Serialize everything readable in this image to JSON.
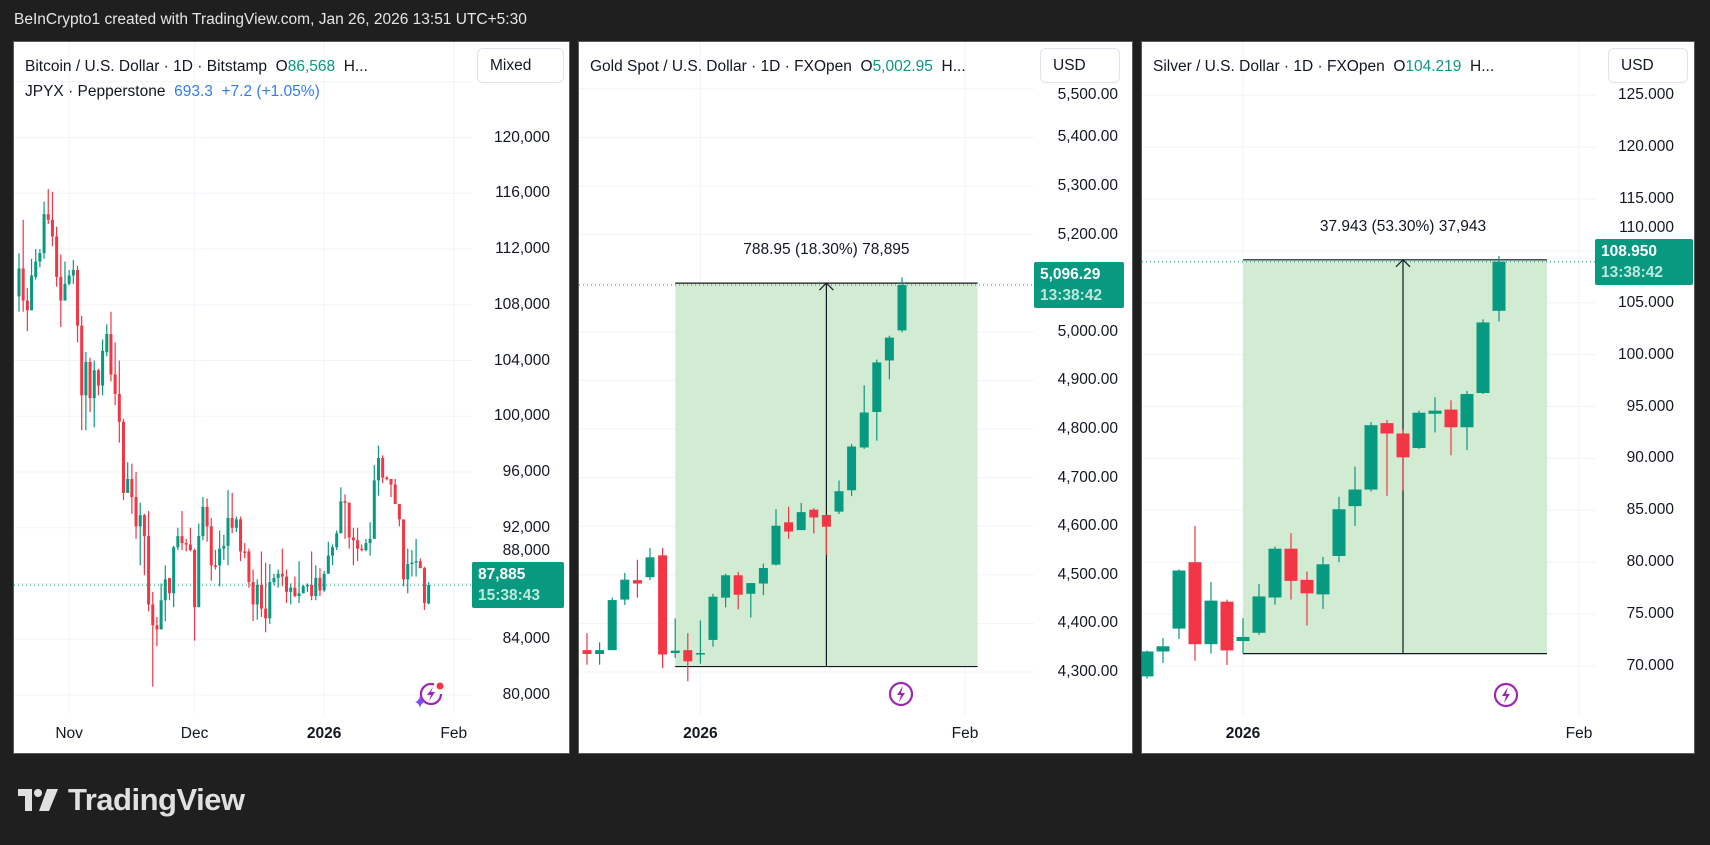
{
  "topbar": {
    "text": "BeInCrypto1 created with TradingView.com, Jan 26, 2026 13:51 UTC+5:30"
  },
  "logo": {
    "text": "TradingView"
  },
  "colors": {
    "up": "#089981",
    "down": "#f23645",
    "measure_fill": "#d2ebd3",
    "legend_blue": "#2f7cf6",
    "bolt": "#9c27b0"
  },
  "panels": [
    {
      "symbol": "Bitcoin / U.S. Dollar · 1D · Bitstamp",
      "open_prefix": "O",
      "open_value": "86,568",
      "more": "H...",
      "overlay": {
        "name": "JPYX · Pepperstone",
        "value": "693.3",
        "change": "+7.2 (+1.05%)"
      },
      "scale_button": "Mixed",
      "price_label": {
        "price": "87,885",
        "countdown": "15:38:43"
      }
    },
    {
      "symbol": "Gold Spot / U.S. Dollar · 1D · FXOpen",
      "open_prefix": "O",
      "open_value": "5,002.95",
      "more": "H...",
      "scale_button": "USD",
      "price_label": {
        "price": "5,096.29",
        "countdown": "13:38:42"
      },
      "measure_label": "788.95 (18.30%) 78,895"
    },
    {
      "symbol": "Silver / U.S. Dollar · 1D · FXOpen",
      "open_prefix": "O",
      "open_value": "104.219",
      "more": "H...",
      "scale_button": "USD",
      "price_label": {
        "price": "108.950",
        "countdown": "13:38:42"
      },
      "measure_label": "37.943 (53.30%) 37,943"
    }
  ],
  "chart_data": [
    {
      "type": "candlestick",
      "title": "Bitcoin / U.S. Dollar · 1D · Bitstamp",
      "last_price": 87885,
      "ylim": [
        79000,
        125000
      ],
      "grid": true,
      "y_ticks": [
        {
          "value": 80000,
          "label": "80,000"
        },
        {
          "value": 84000,
          "label": "84,000"
        },
        {
          "value": 88000,
          "label": "88,000"
        },
        {
          "value": 92000,
          "label": "92,000"
        },
        {
          "value": 96000,
          "label": "96,000"
        },
        {
          "value": 100000,
          "label": "100,000"
        },
        {
          "value": 104000,
          "label": "104,000"
        },
        {
          "value": 108000,
          "label": "108,000"
        },
        {
          "value": 112000,
          "label": "112,000"
        },
        {
          "value": 116000,
          "label": "116,000"
        },
        {
          "value": 120000,
          "label": "120,000"
        },
        {
          "value": 124000,
          "label": ""
        }
      ],
      "x_ticks": [
        {
          "label": "Nov",
          "candle_index": 12,
          "bold": false
        },
        {
          "label": "Dec",
          "candle_index": 42,
          "bold": false
        },
        {
          "label": "2026",
          "candle_index": 73,
          "bold": true
        },
        {
          "label": "Feb",
          "candle_index": 104,
          "bold": false
        }
      ],
      "ohlc": [
        [
          108600,
          111700,
          107500,
          110600
        ],
        [
          110600,
          114100,
          107500,
          108300
        ],
        [
          108300,
          109200,
          106100,
          107600
        ],
        [
          107600,
          111300,
          107600,
          110100
        ],
        [
          110000,
          112000,
          109800,
          111100
        ],
        [
          111100,
          112000,
          110700,
          111700
        ],
        [
          111700,
          115400,
          111300,
          114500
        ],
        [
          114500,
          116300,
          113800,
          114100
        ],
        [
          114100,
          116100,
          112200,
          112900
        ],
        [
          112900,
          113600,
          109300,
          110000
        ],
        [
          110000,
          111600,
          106400,
          108300
        ],
        [
          108300,
          111100,
          108300,
          109500
        ],
        [
          109500,
          110500,
          109400,
          110100
        ],
        [
          110100,
          111200,
          109500,
          110500
        ],
        [
          110500,
          110800,
          105300,
          106500
        ],
        [
          106500,
          107200,
          99000,
          101500
        ],
        [
          101500,
          104600,
          99000,
          103900
        ],
        [
          103900,
          104200,
          100300,
          101300
        ],
        [
          101300,
          104000,
          99200,
          103300
        ],
        [
          103300,
          103400,
          101500,
          102200
        ],
        [
          102200,
          105500,
          101500,
          104700
        ],
        [
          104600,
          106600,
          104300,
          105900
        ],
        [
          105900,
          107500,
          102500,
          103000
        ],
        [
          103000,
          105300,
          100800,
          101600
        ],
        [
          101600,
          104000,
          98100,
          99600
        ],
        [
          99600,
          99800,
          94000,
          94500
        ],
        [
          94500,
          96700,
          94500,
          95500
        ],
        [
          95500,
          96600,
          93000,
          94200
        ],
        [
          94200,
          96000,
          91200,
          92100
        ],
        [
          92100,
          93800,
          89300,
          92900
        ],
        [
          92900,
          93000,
          88600,
          91400
        ],
        [
          91400,
          93200,
          86000,
          86500
        ],
        [
          86500,
          87400,
          80600,
          85000
        ],
        [
          85000,
          85600,
          83500,
          84700
        ],
        [
          84700,
          88000,
          84700,
          86800
        ],
        [
          86800,
          89300,
          85300,
          88300
        ],
        [
          88400,
          88400,
          86800,
          87300
        ],
        [
          87300,
          90700,
          86300,
          90600
        ],
        [
          90600,
          92000,
          90400,
          91400
        ],
        [
          91400,
          93200,
          90400,
          90900
        ],
        [
          90900,
          91200,
          90300,
          90800
        ],
        [
          90800,
          92000,
          90300,
          90400
        ],
        [
          90400,
          90500,
          83900,
          86300
        ],
        [
          86300,
          92300,
          86300,
          91400
        ],
        [
          91400,
          94200,
          91100,
          93500
        ],
        [
          93500,
          94100,
          91000,
          92100
        ],
        [
          92100,
          92700,
          88200,
          89300
        ],
        [
          89300,
          90400,
          89000,
          89200
        ],
        [
          89300,
          91800,
          87800,
          90500
        ],
        [
          90500,
          91500,
          89700,
          90700
        ],
        [
          90700,
          94700,
          89300,
          92700
        ],
        [
          92700,
          94500,
          91600,
          92000
        ],
        [
          92000,
          92800,
          91700,
          92600
        ],
        [
          92600,
          92800,
          89600,
          90300
        ],
        [
          90300,
          90900,
          89800,
          90250
        ],
        [
          90300,
          90500,
          87700,
          88100
        ],
        [
          88100,
          89000,
          85300,
          86500
        ],
        [
          86500,
          88300,
          85400,
          87900
        ],
        [
          87900,
          90300,
          85600,
          86200
        ],
        [
          86200,
          89500,
          84500,
          85500
        ],
        [
          85500,
          89400,
          85100,
          88100
        ],
        [
          88100,
          88700,
          87900,
          88400
        ],
        [
          88400,
          89000,
          87700,
          88700
        ],
        [
          88700,
          90500,
          87800,
          88500
        ],
        [
          88500,
          89000,
          86600,
          87400
        ],
        [
          87400,
          88000,
          86500,
          87700
        ],
        [
          87700,
          88500,
          87000,
          87100
        ],
        [
          87100,
          89600,
          86600,
          87300
        ],
        [
          87300,
          87900,
          87300,
          87800
        ],
        [
          87800,
          88000,
          87400,
          87900
        ],
        [
          87900,
          90300,
          86800,
          87100
        ],
        [
          87100,
          89300,
          86800,
          88400
        ],
        [
          88400,
          89100,
          87100,
          87500
        ],
        [
          87500,
          88900,
          87400,
          88700
        ],
        [
          88700,
          91000,
          88700,
          90000
        ],
        [
          90000,
          90800,
          89300,
          90600
        ],
        [
          90600,
          91800,
          90400,
          91600
        ],
        [
          91600,
          94900,
          91600,
          93900
        ],
        [
          93900,
          94400,
          91200,
          93800
        ],
        [
          93800,
          93800,
          90500,
          91300
        ],
        [
          91300,
          92000,
          89300,
          91100
        ],
        [
          91100,
          92000,
          89600,
          90500
        ],
        [
          90500,
          90800,
          90300,
          90400
        ],
        [
          90400,
          91200,
          90300,
          90900
        ],
        [
          90900,
          92400,
          90000,
          91200
        ],
        [
          91200,
          96500,
          91200,
          95400
        ],
        [
          95400,
          97900,
          94300,
          97000
        ],
        [
          97000,
          97200,
          95200,
          95600
        ],
        [
          95600,
          95700,
          95400,
          95500
        ],
        [
          95500,
          95500,
          94200,
          95100
        ],
        [
          95100,
          95500,
          93700,
          93700
        ],
        [
          93700,
          93700,
          92100,
          92600
        ],
        [
          92600,
          92600,
          87800,
          88300
        ],
        [
          88300,
          90500,
          87300,
          89400
        ],
        [
          89400,
          90400,
          88500,
          89500
        ],
        [
          89500,
          91200,
          88500,
          89600
        ],
        [
          89600,
          89800,
          89100,
          89100
        ],
        [
          89100,
          89200,
          86100,
          86600
        ],
        [
          86568,
          88100,
          86500,
          87885
        ]
      ]
    },
    {
      "type": "candlestick",
      "title": "Gold Spot / U.S. Dollar · 1D · FXOpen",
      "last_price": 5096.29,
      "ylim": [
        4210,
        5510
      ],
      "grid": true,
      "y_ticks": [
        {
          "value": 4300,
          "label": "4,300.00"
        },
        {
          "value": 4400,
          "label": "4,400.00"
        },
        {
          "value": 4500,
          "label": "4,500.00"
        },
        {
          "value": 4600,
          "label": "4,600.00"
        },
        {
          "value": 4700,
          "label": "4,700.00"
        },
        {
          "value": 4800,
          "label": "4,800.00"
        },
        {
          "value": 4900,
          "label": "4,900.00"
        },
        {
          "value": 5000,
          "label": "5,000.00"
        },
        {
          "value": 5100,
          "label": ""
        },
        {
          "value": 5200,
          "label": "5,200.00"
        },
        {
          "value": 5300,
          "label": "5,300.00"
        },
        {
          "value": 5400,
          "label": "5,400.00"
        },
        {
          "value": 5500,
          "label": "5,500.00"
        }
      ],
      "x_ticks": [
        {
          "label": "2026",
          "candle_index": 9,
          "bold": true
        },
        {
          "label": "Feb",
          "candle_index": 30,
          "bold": false
        }
      ],
      "measure": {
        "from_candle": 7,
        "to_candle": 31,
        "arrow_candle": 19,
        "low": 4311.2,
        "high": 5100.15
      },
      "ohlc": [
        [
          4345,
          4380,
          4315,
          4337
        ],
        [
          4337,
          4361,
          4315,
          4345
        ],
        [
          4345,
          4453,
          4345,
          4448
        ],
        [
          4449,
          4504,
          4438,
          4490
        ],
        [
          4489,
          4531,
          4453,
          4482
        ],
        [
          4495,
          4555,
          4489,
          4536
        ],
        [
          4540,
          4555,
          4308,
          4336
        ],
        [
          4339,
          4410,
          4329,
          4344
        ],
        [
          4345,
          4380,
          4281,
          4322
        ],
        [
          4338,
          4406,
          4317,
          4339
        ],
        [
          4366,
          4461,
          4352,
          4455
        ],
        [
          4453,
          4502,
          4433,
          4499
        ],
        [
          4499,
          4506,
          4429,
          4459
        ],
        [
          4461,
          4483,
          4412,
          4483
        ],
        [
          4482,
          4523,
          4458,
          4514
        ],
        [
          4521,
          4635,
          4519,
          4601
        ],
        [
          4608,
          4640,
          4574,
          4589
        ],
        [
          4592,
          4648,
          4592,
          4629
        ],
        [
          4634,
          4637,
          4585,
          4618
        ],
        [
          4623,
          4623,
          4541,
          4599
        ],
        [
          4630,
          4694,
          4625,
          4672
        ],
        [
          4674,
          4769,
          4662,
          4764
        ],
        [
          4762,
          4890,
          4759,
          4834
        ],
        [
          4835,
          4943,
          4776,
          4937
        ],
        [
          4941,
          4992,
          4902,
          4988
        ],
        [
          5002.95,
          5112,
          4999,
          5096.29
        ]
      ]
    },
    {
      "type": "candlestick",
      "title": "Silver / U.S. Dollar · 1D · FXOpen",
      "last_price": 108.95,
      "ylim": [
        65,
        126
      ],
      "grid": true,
      "y_ticks": [
        {
          "value": 70,
          "label": "70.000"
        },
        {
          "value": 75,
          "label": "75.000"
        },
        {
          "value": 80,
          "label": "80.000"
        },
        {
          "value": 85,
          "label": "85.000"
        },
        {
          "value": 90,
          "label": "90.000"
        },
        {
          "value": 95,
          "label": "95.000"
        },
        {
          "value": 100,
          "label": "100.000"
        },
        {
          "value": 105,
          "label": "105.000"
        },
        {
          "value": 110,
          "label": "110.000"
        },
        {
          "value": 115,
          "label": "115.000"
        },
        {
          "value": 120,
          "label": "120.000"
        },
        {
          "value": 125,
          "label": "125.000"
        }
      ],
      "x_ticks": [
        {
          "label": "2026",
          "candle_index": 6,
          "bold": true
        },
        {
          "label": "Feb",
          "candle_index": 27,
          "bold": false
        }
      ],
      "measure": {
        "from_candle": 6,
        "to_candle": 25,
        "arrow_candle": 16,
        "low": 71.19,
        "high": 109.13
      },
      "ohlc": [
        [
          69.0,
          71.5,
          68.8,
          71.4
        ],
        [
          71.4,
          72.7,
          70.3,
          71.9
        ],
        [
          73.6,
          79.3,
          72.6,
          79.2
        ],
        [
          80.0,
          83.5,
          70.5,
          72.1
        ],
        [
          72.1,
          78.1,
          71.2,
          76.3
        ],
        [
          76.2,
          76.4,
          70.1,
          71.5
        ],
        [
          72.4,
          74.6,
          71.2,
          72.8
        ],
        [
          73.2,
          77.9,
          73.0,
          76.7
        ],
        [
          76.6,
          81.5,
          75.9,
          81.3
        ],
        [
          81.3,
          82.8,
          76.4,
          78.2
        ],
        [
          78.3,
          79.1,
          73.9,
          77.0
        ],
        [
          76.9,
          80.5,
          75.5,
          79.8
        ],
        [
          80.6,
          86.3,
          80.0,
          85.1
        ],
        [
          85.4,
          89.2,
          83.5,
          87.0
        ],
        [
          87.0,
          93.5,
          86.8,
          93.2
        ],
        [
          93.4,
          93.7,
          86.4,
          92.4
        ],
        [
          92.4,
          92.8,
          86.9,
          90.1
        ],
        [
          91.0,
          94.6,
          90.9,
          94.4
        ],
        [
          94.3,
          95.9,
          92.5,
          94.6
        ],
        [
          94.7,
          95.6,
          90.3,
          93.0
        ],
        [
          93.0,
          96.5,
          90.8,
          96.2
        ],
        [
          96.3,
          103.4,
          96.2,
          103.1
        ],
        [
          104.219,
          109.5,
          103.2,
          108.95
        ]
      ]
    }
  ]
}
